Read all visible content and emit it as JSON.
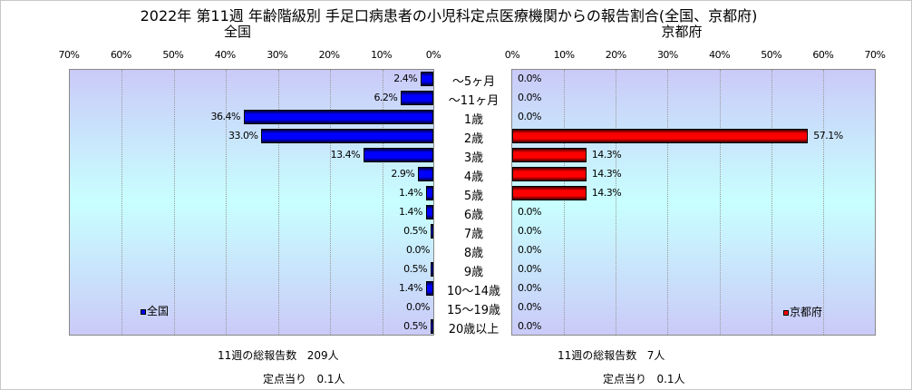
{
  "chart_data": [
    {
      "type": "bar",
      "orientation": "horizontal",
      "title": "2022年 第11週 年齢階級別 手足口病患者の小児科定点医療機関からの報告割合(全国、京都府)",
      "subtitle": "全国",
      "direction": "right-to-left",
      "categories": [
        "〜5ヶ月",
        "〜11ヶ月",
        "1歳",
        "2歳",
        "3歳",
        "4歳",
        "5歳",
        "6歳",
        "7歳",
        "8歳",
        "9歳",
        "10〜14歳",
        "15〜19歳",
        "20歳以上"
      ],
      "series": [
        {
          "name": "全国",
          "values": [
            2.4,
            6.2,
            36.4,
            33.0,
            13.4,
            2.9,
            1.4,
            1.4,
            0.5,
            0.0,
            0.5,
            1.4,
            0.0,
            0.5
          ],
          "color": "#0000ff"
        }
      ],
      "xlim": [
        0,
        70
      ],
      "ticks": [
        "70%",
        "60%",
        "50%",
        "40%",
        "30%",
        "20%",
        "10%",
        "0%"
      ],
      "grid": true,
      "legend": "bottom-left",
      "summary": {
        "total_label": "11週の総報告数",
        "total_value": "209人",
        "per_label": "定点当り",
        "per_value": "0.1人"
      }
    },
    {
      "type": "bar",
      "orientation": "horizontal",
      "subtitle": "京都府",
      "direction": "left-to-right",
      "series": [
        {
          "name": "京都府",
          "values": [
            0.0,
            0.0,
            0.0,
            57.1,
            14.3,
            14.3,
            14.3,
            0.0,
            0.0,
            0.0,
            0.0,
            0.0,
            0.0,
            0.0
          ],
          "color": "#ff0000"
        }
      ],
      "xlim": [
        0,
        70
      ],
      "ticks": [
        "0%",
        "10%",
        "20%",
        "30%",
        "40%",
        "50%",
        "60%",
        "70%"
      ],
      "grid": true,
      "legend": "bottom-right",
      "summary": {
        "total_label": "11週の総報告数",
        "total_value": "7人",
        "per_label": "定点当り",
        "per_value": "0.1人"
      }
    }
  ]
}
